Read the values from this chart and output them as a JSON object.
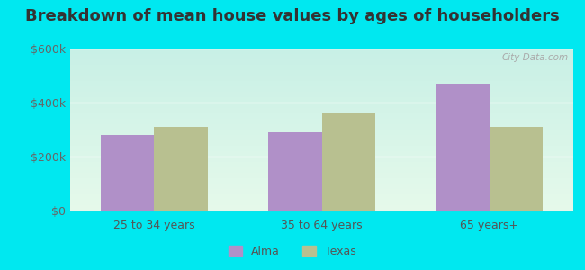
{
  "title": "Breakdown of mean house values by ages of householders",
  "categories": [
    "25 to 34 years",
    "35 to 64 years",
    "65 years+"
  ],
  "alma_values": [
    280000,
    290000,
    470000
  ],
  "texas_values": [
    310000,
    360000,
    310000
  ],
  "alma_color": "#b090c8",
  "texas_color": "#b8c090",
  "ylim": [
    0,
    600000
  ],
  "yticks": [
    0,
    200000,
    400000,
    600000
  ],
  "ytick_labels": [
    "$0",
    "$200k",
    "$400k",
    "$600k"
  ],
  "legend_alma": "Alma",
  "legend_texas": "Texas",
  "bar_width": 0.32,
  "background_outer": "#00e8f0",
  "title_fontsize": 13,
  "tick_fontsize": 9,
  "legend_fontsize": 9
}
